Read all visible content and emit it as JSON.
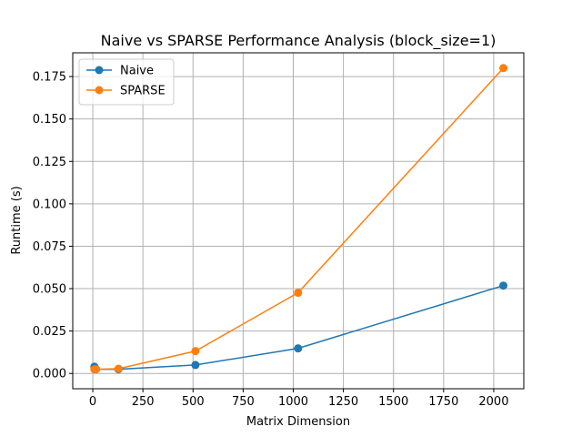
{
  "chart_data": {
    "type": "line",
    "title": "Naive vs SPARSE Performance Analysis (block_size=1)",
    "xlabel": "Matrix Dimension",
    "ylabel": "Runtime (s)",
    "xlim": [
      -100,
      2150
    ],
    "ylim": [
      -0.009,
      0.189
    ],
    "xticks": [
      0,
      250,
      500,
      750,
      1000,
      1250,
      1500,
      1750,
      2000
    ],
    "xtick_labels": [
      "0",
      "250",
      "500",
      "750",
      "1000",
      "1250",
      "1500",
      "1750",
      "2000"
    ],
    "yticks": [
      0.0,
      0.025,
      0.05,
      0.075,
      0.1,
      0.125,
      0.15,
      0.175
    ],
    "ytick_labels": [
      "0.000",
      "0.025",
      "0.050",
      "0.075",
      "0.100",
      "0.125",
      "0.150",
      "0.175"
    ],
    "grid": true,
    "legend_position": "top-left",
    "series": [
      {
        "name": "Naive",
        "color": "#1f77b4",
        "x": [
          8,
          16,
          128,
          512,
          1024,
          2048
        ],
        "y": [
          0.004,
          0.0025,
          0.0025,
          0.005,
          0.0148,
          0.0518
        ]
      },
      {
        "name": "SPARSE",
        "color": "#ff7f0e",
        "x": [
          8,
          16,
          128,
          512,
          1024,
          2048
        ],
        "y": [
          0.0025,
          0.0025,
          0.0028,
          0.0132,
          0.0476,
          0.18
        ]
      }
    ]
  }
}
